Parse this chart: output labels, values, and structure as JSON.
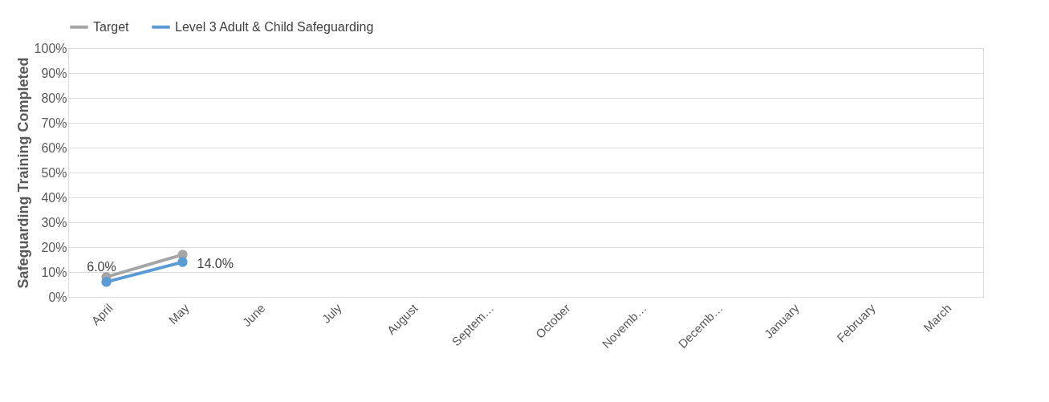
{
  "chart_data": {
    "type": "line",
    "categories": [
      "April",
      "May",
      "June",
      "July",
      "August",
      "Septem…",
      "October",
      "Novemb…",
      "Decemb…",
      "January",
      "February",
      "March"
    ],
    "ylabel": "Safeguarding Training Completed",
    "series": [
      {
        "name": "Target",
        "color": "#a5a5a5",
        "values": [
          8,
          17,
          null,
          null,
          null,
          null,
          null,
          null,
          null,
          null,
          null,
          null
        ]
      },
      {
        "name": "Level 3 Adult & Child Safeguarding",
        "color": "#5b9bd5",
        "values": [
          6,
          14,
          null,
          null,
          null,
          null,
          null,
          null,
          null,
          null,
          null,
          null
        ],
        "value_labels": [
          "6.0%",
          "14.0%",
          null,
          null,
          null,
          null,
          null,
          null,
          null,
          null,
          null,
          null
        ]
      }
    ],
    "ylim": [
      0,
      100
    ],
    "yticks": [
      {
        "value": 0,
        "label": "0%"
      },
      {
        "value": 10,
        "label": "10%"
      },
      {
        "value": 20,
        "label": "20%"
      },
      {
        "value": 30,
        "label": "30%"
      },
      {
        "value": 40,
        "label": "40%"
      },
      {
        "value": 50,
        "label": "50%"
      },
      {
        "value": 60,
        "label": "60%"
      },
      {
        "value": 70,
        "label": "70%"
      },
      {
        "value": 80,
        "label": "80%"
      },
      {
        "value": 90,
        "label": "90%"
      },
      {
        "value": 100,
        "label": "100%"
      }
    ],
    "grid": "y",
    "legend": "top",
    "marker": "circle",
    "line_style": "solid"
  }
}
